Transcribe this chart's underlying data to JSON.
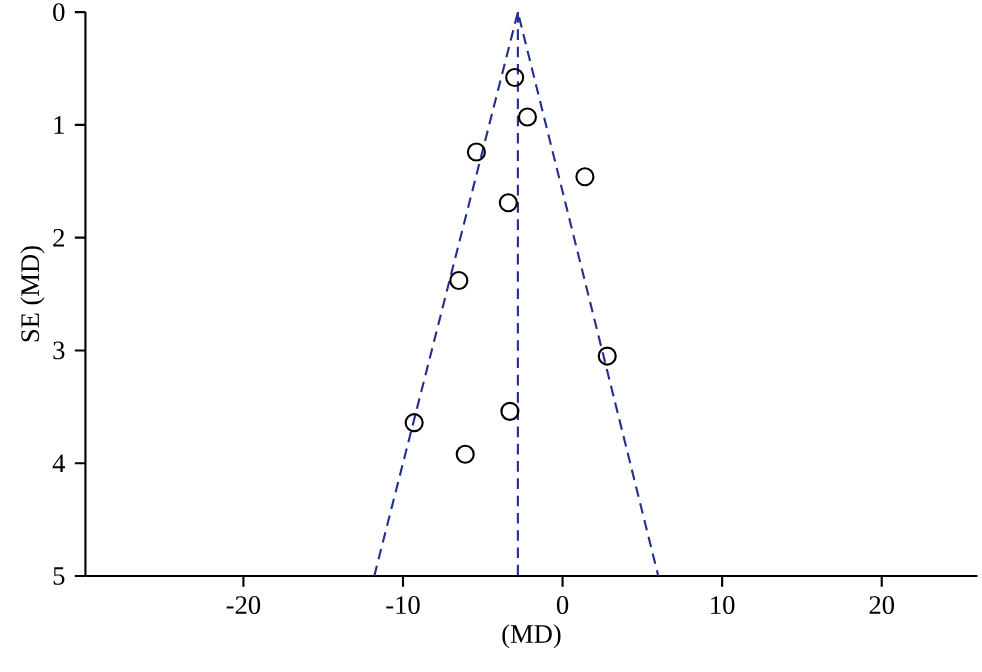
{
  "chart_data": {
    "type": "scatter",
    "xlabel": "(MD)",
    "ylabel": "SE (MD)",
    "xlim": [
      -29.9,
      26
    ],
    "ylim": [
      5,
      0
    ],
    "xticks": [
      -20,
      -10,
      0,
      10,
      20
    ],
    "yticks": [
      0,
      1,
      2,
      3,
      4,
      5
    ],
    "grid": false,
    "series": [
      {
        "color": "#000000",
        "marker": "circle",
        "x": [
          -3.0,
          -2.2,
          -5.4,
          1.4,
          -3.4,
          -6.5,
          2.8,
          -3.3,
          -9.3,
          -6.1
        ],
        "values": [
          0.58,
          0.93,
          1.24,
          1.46,
          1.69,
          2.38,
          3.05,
          3.54,
          3.64,
          3.92
        ]
      },
      {
        "type": "line",
        "color": "#23308c",
        "line_style": "dashed",
        "marker": "none",
        "x": [
          -11.8,
          -2.8,
          6.0
        ],
        "values": [
          5,
          0,
          5
        ]
      },
      {
        "type": "line",
        "color": "#23308c",
        "line_style": "dashed",
        "marker": "none",
        "x": [
          -2.8,
          -2.8
        ],
        "values": [
          0,
          5
        ]
      }
    ]
  }
}
